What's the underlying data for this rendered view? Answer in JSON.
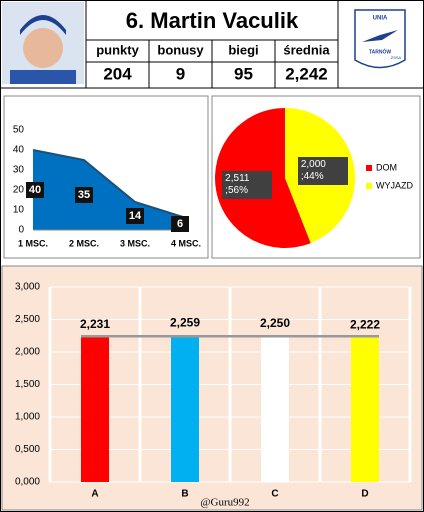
{
  "header": {
    "title": "6. Martin Vaculik",
    "stat_labels": [
      "punkty",
      "bonusy",
      "biegi",
      "średnia"
    ],
    "stat_values": [
      "204",
      "9",
      "95",
      "2,242"
    ],
    "logo": [
      "UNIA",
      "TARNÓW",
      "ŻSSA"
    ]
  },
  "chart_data": [
    {
      "type": "area",
      "categories": [
        "1 MSC.",
        "2 MSC.",
        "3 MSC.",
        "4 MSC."
      ],
      "values": [
        40,
        35,
        14,
        6
      ],
      "color": "#0070c0",
      "ylim": [
        0,
        50
      ],
      "yticks": [
        0,
        10,
        20,
        30,
        40,
        50
      ]
    },
    {
      "type": "pie",
      "categories": [
        "DOM",
        "WYJAZD"
      ],
      "values": [
        56,
        44
      ],
      "value_labels": [
        "2,511 ;56%",
        "2,000 ;44%"
      ],
      "colors": [
        "#ff0000",
        "#ffff00"
      ],
      "legend": "right"
    },
    {
      "type": "bar",
      "categories": [
        "A",
        "B",
        "C",
        "D"
      ],
      "values": [
        2.231,
        2.259,
        2.25,
        2.222
      ],
      "value_labels": [
        "2,231",
        "2,259",
        "2,250",
        "2,222"
      ],
      "colors": [
        "#ff0000",
        "#00b0f0",
        "#ffffff",
        "#ffff00"
      ],
      "reference_line": 2.242,
      "ylim": [
        0,
        3
      ],
      "yticks": [
        {
          "value": 0,
          "label": "0,000"
        },
        {
          "value": 0.5,
          "label": "0,500"
        },
        {
          "value": 1,
          "label": "1,000"
        },
        {
          "value": 1.5,
          "label": "1,500"
        },
        {
          "value": 2,
          "label": "2,000"
        },
        {
          "value": 2.5,
          "label": "2,500"
        },
        {
          "value": 3,
          "label": "3,000"
        }
      ],
      "grid": true
    }
  ],
  "footer": "@Guru992"
}
